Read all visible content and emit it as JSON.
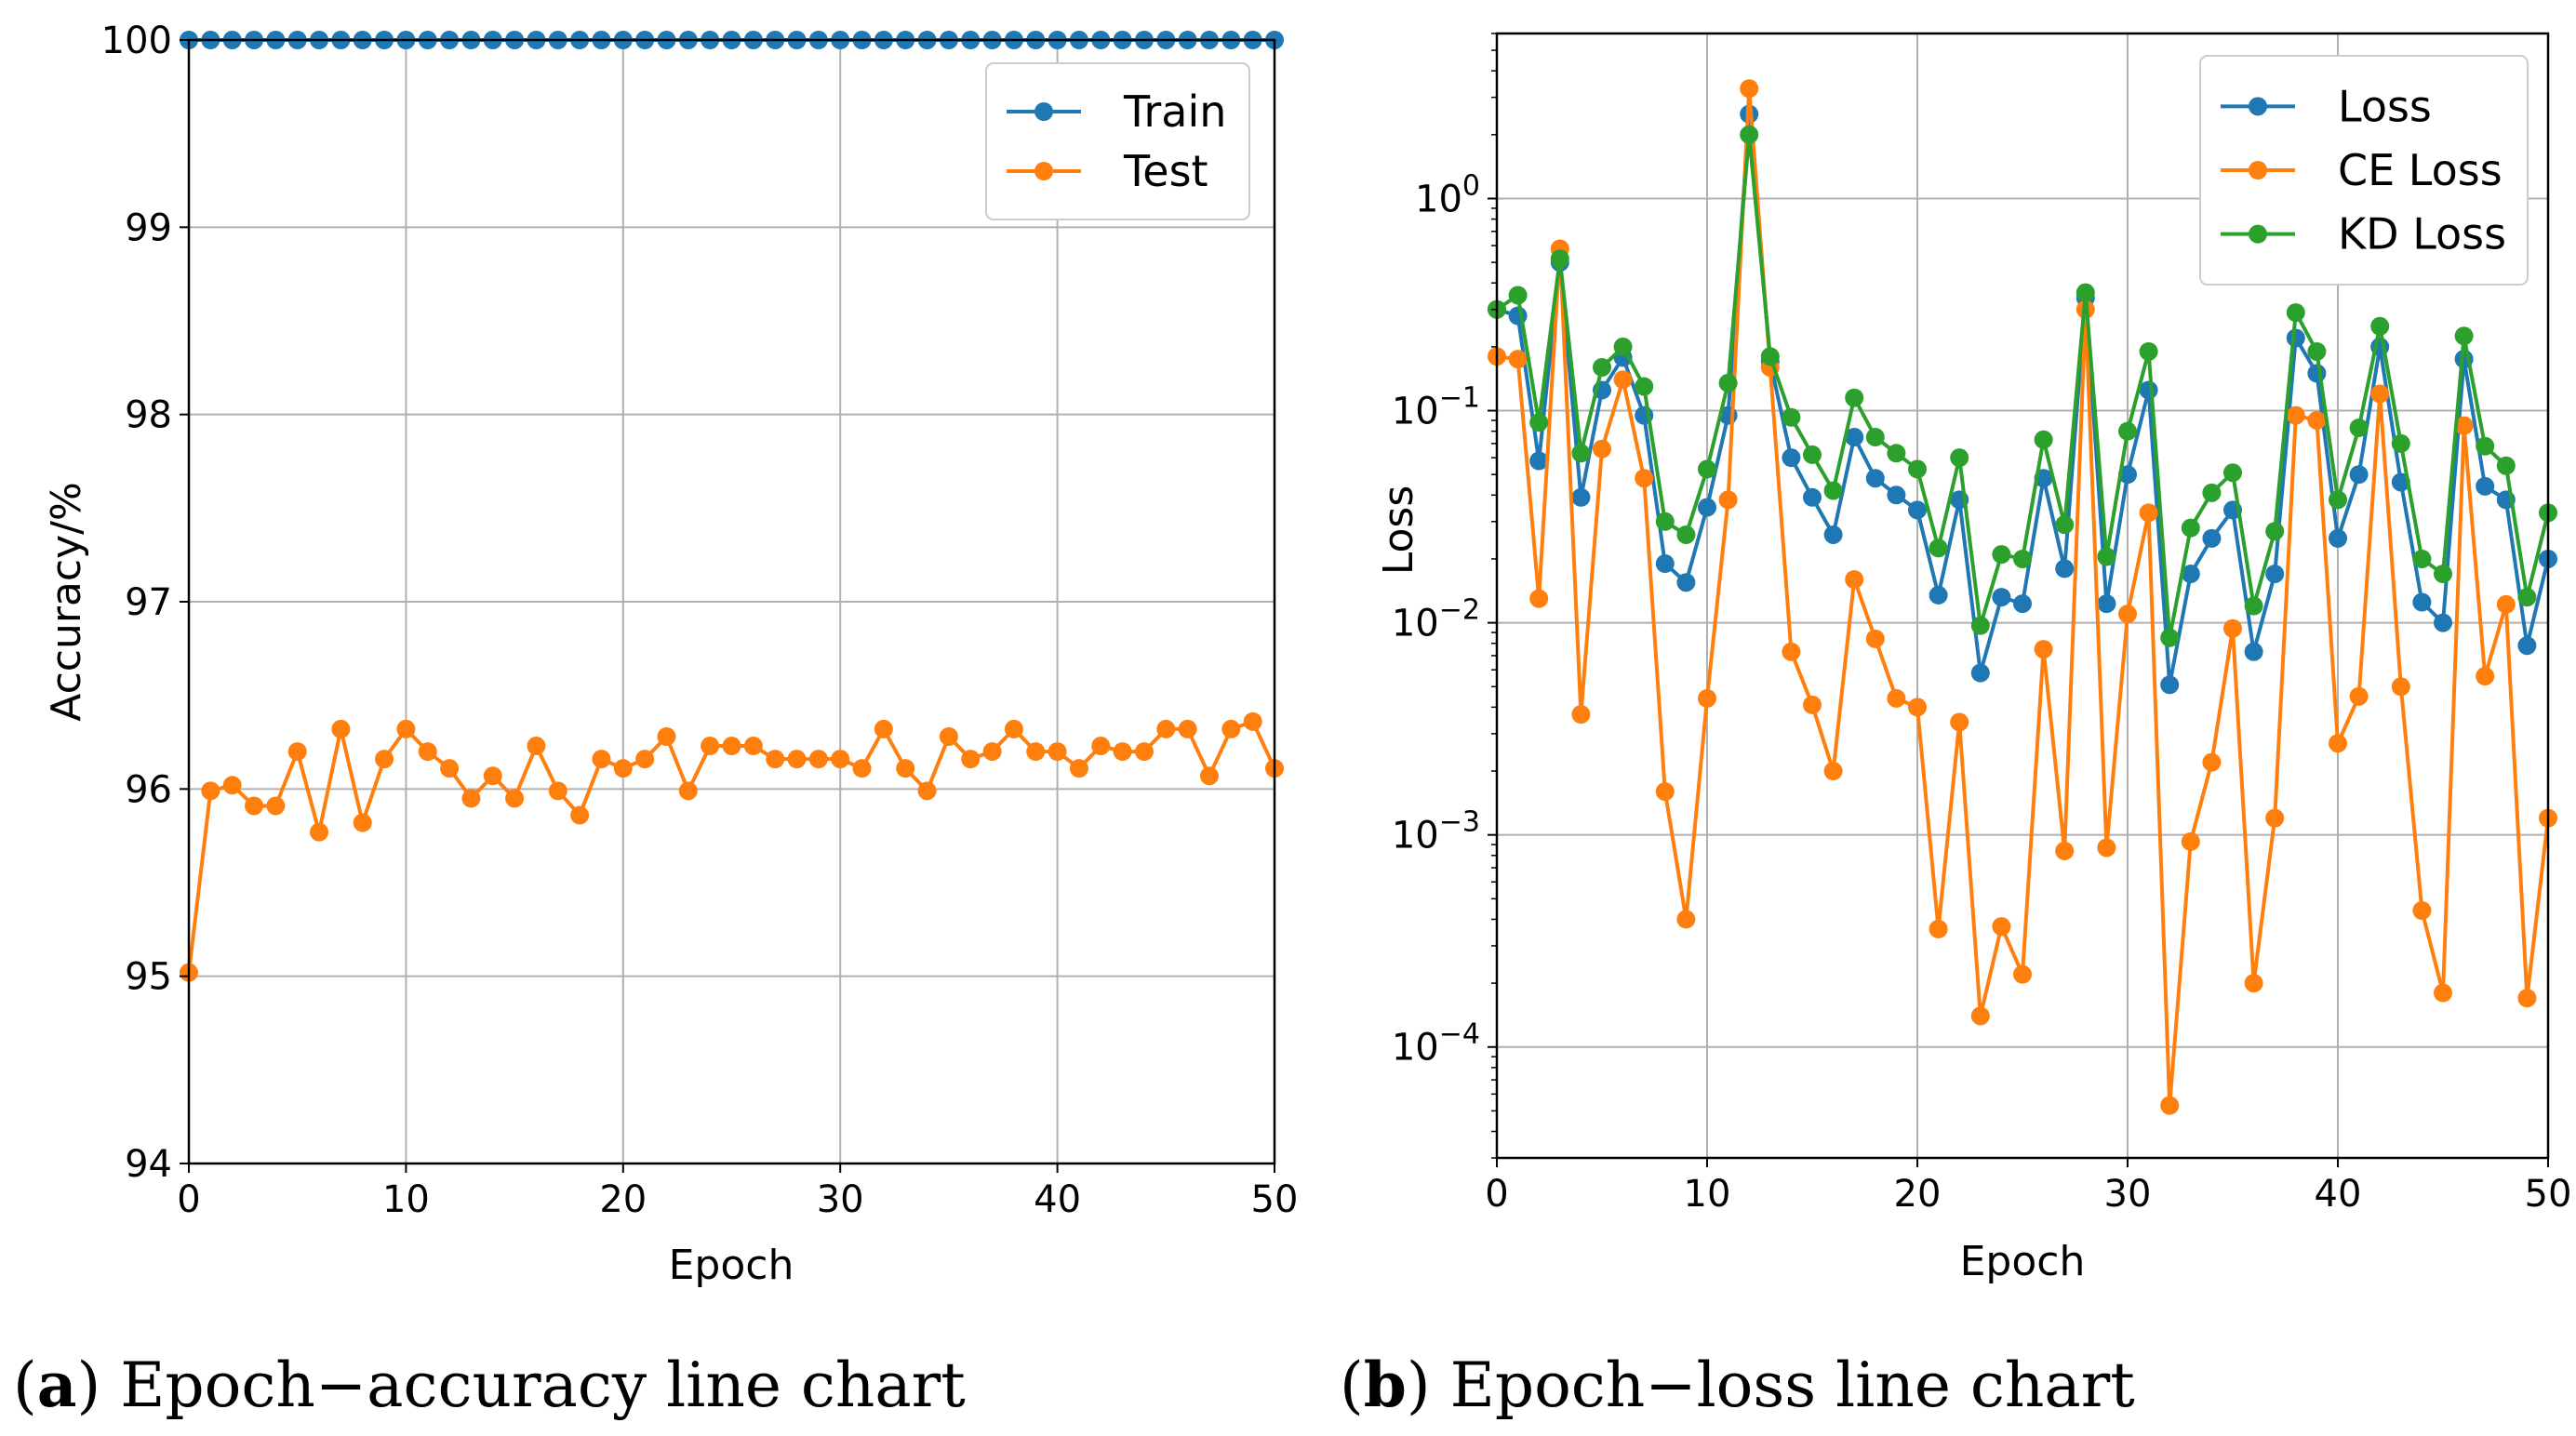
{
  "chart_data": [
    {
      "type": "line",
      "panel": "a",
      "caption_letter": "a",
      "caption_text": "Epoch−accuracy line chart",
      "xlabel": "Epoch",
      "ylabel": "Accuracy/%",
      "xlim": [
        0,
        50
      ],
      "ylim": [
        94,
        100
      ],
      "yscale": "linear",
      "xticks": [
        0,
        10,
        20,
        30,
        40,
        50
      ],
      "yticks": [
        94,
        95,
        96,
        97,
        98,
        99,
        100
      ],
      "grid": true,
      "legend_position": "top-right",
      "x": [
        0,
        1,
        2,
        3,
        4,
        5,
        6,
        7,
        8,
        9,
        10,
        11,
        12,
        13,
        14,
        15,
        16,
        17,
        18,
        19,
        20,
        21,
        22,
        23,
        24,
        25,
        26,
        27,
        28,
        29,
        30,
        31,
        32,
        33,
        34,
        35,
        36,
        37,
        38,
        39,
        40,
        41,
        42,
        43,
        44,
        45,
        46,
        47,
        48,
        49,
        50
      ],
      "series": [
        {
          "name": "Train",
          "color": "#1f77b4",
          "values": [
            100,
            100,
            100,
            100,
            100,
            100,
            100,
            100,
            100,
            100,
            100,
            100,
            100,
            100,
            100,
            100,
            100,
            100,
            100,
            100,
            100,
            100,
            100,
            100,
            100,
            100,
            100,
            100,
            100,
            100,
            100,
            100,
            100,
            100,
            100,
            100,
            100,
            100,
            100,
            100,
            100,
            100,
            100,
            100,
            100,
            100,
            100,
            100,
            100,
            100,
            100
          ]
        },
        {
          "name": "Test",
          "color": "#ff7f0e",
          "values": [
            95.02,
            95.99,
            96.02,
            95.91,
            95.91,
            96.2,
            95.77,
            96.32,
            95.82,
            96.16,
            96.32,
            96.2,
            96.11,
            95.95,
            96.07,
            95.95,
            96.23,
            95.99,
            95.86,
            96.16,
            96.11,
            96.16,
            96.28,
            95.99,
            96.23,
            96.23,
            96.23,
            96.16,
            96.16,
            96.16,
            96.16,
            96.11,
            96.32,
            96.11,
            95.99,
            96.28,
            96.16,
            96.2,
            96.32,
            96.2,
            96.2,
            96.11,
            96.23,
            96.2,
            96.2,
            96.32,
            96.32,
            96.07,
            96.32,
            96.36,
            96.11
          ]
        }
      ]
    },
    {
      "type": "line",
      "panel": "b",
      "caption_letter": "b",
      "caption_text": "Epoch−loss line chart",
      "xlabel": "Epoch",
      "ylabel": "Loss",
      "xlim": [
        0,
        50
      ],
      "ylim": [
        3e-05,
        6
      ],
      "yscale": "log",
      "xticks": [
        0,
        10,
        20,
        30,
        40,
        50
      ],
      "yticks": [
        {
          "value": 0.0001,
          "base": "10",
          "exp": "−4"
        },
        {
          "value": 0.001,
          "base": "10",
          "exp": "−3"
        },
        {
          "value": 0.01,
          "base": "10",
          "exp": "−2"
        },
        {
          "value": 0.1,
          "base": "10",
          "exp": "−1"
        },
        {
          "value": 1,
          "base": "10",
          "exp": "0"
        }
      ],
      "grid": true,
      "legend_position": "top-right",
      "x": [
        0,
        1,
        2,
        3,
        4,
        5,
        6,
        7,
        8,
        9,
        10,
        11,
        12,
        13,
        14,
        15,
        16,
        17,
        18,
        19,
        20,
        21,
        22,
        23,
        24,
        25,
        26,
        27,
        28,
        29,
        30,
        31,
        32,
        33,
        34,
        35,
        36,
        37,
        38,
        39,
        40,
        41,
        42,
        43,
        44,
        45,
        46,
        47,
        48,
        49,
        50
      ],
      "series": [
        {
          "name": "Loss",
          "color": "#1f77b4",
          "values": [
            0.3,
            0.28,
            0.058,
            0.5,
            0.039,
            0.125,
            0.178,
            0.095,
            0.019,
            0.0155,
            0.035,
            0.095,
            2.5,
            0.17,
            0.06,
            0.039,
            0.026,
            0.075,
            0.048,
            0.04,
            0.034,
            0.0135,
            0.038,
            0.0058,
            0.0132,
            0.0123,
            0.048,
            0.018,
            0.34,
            0.0123,
            0.05,
            0.125,
            0.0051,
            0.017,
            0.025,
            0.034,
            0.0073,
            0.017,
            0.22,
            0.15,
            0.025,
            0.05,
            0.2,
            0.046,
            0.0125,
            0.01,
            0.175,
            0.044,
            0.038,
            0.0078,
            0.02
          ]
        },
        {
          "name": "CE Loss",
          "color": "#ff7f0e",
          "values": [
            0.18,
            0.175,
            0.013,
            0.58,
            0.0037,
            0.066,
            0.14,
            0.048,
            0.0016,
            0.0004,
            0.0044,
            0.038,
            3.3,
            0.16,
            0.0073,
            0.0041,
            0.002,
            0.016,
            0.0084,
            0.0044,
            0.004,
            0.00036,
            0.0034,
            0.00014,
            0.00037,
            0.00022,
            0.0075,
            0.00084,
            0.3,
            0.00087,
            0.011,
            0.033,
            5.3e-05,
            0.00093,
            0.0022,
            0.0094,
            0.0002,
            0.0012,
            0.095,
            0.09,
            0.0027,
            0.0045,
            0.12,
            0.005,
            0.00044,
            0.00018,
            0.085,
            0.0056,
            0.0122,
            0.00017,
            0.0012
          ]
        },
        {
          "name": "KD Loss",
          "color": "#2ca02c",
          "values": [
            0.3,
            0.35,
            0.088,
            0.52,
            0.063,
            0.16,
            0.2,
            0.13,
            0.03,
            0.026,
            0.053,
            0.135,
            2.0,
            0.18,
            0.093,
            0.062,
            0.042,
            0.115,
            0.075,
            0.063,
            0.053,
            0.0225,
            0.06,
            0.0097,
            0.021,
            0.02,
            0.073,
            0.029,
            0.36,
            0.0205,
            0.08,
            0.19,
            0.0085,
            0.028,
            0.041,
            0.051,
            0.012,
            0.027,
            0.29,
            0.19,
            0.038,
            0.083,
            0.25,
            0.07,
            0.02,
            0.017,
            0.225,
            0.068,
            0.055,
            0.0132,
            0.033
          ]
        }
      ]
    }
  ]
}
